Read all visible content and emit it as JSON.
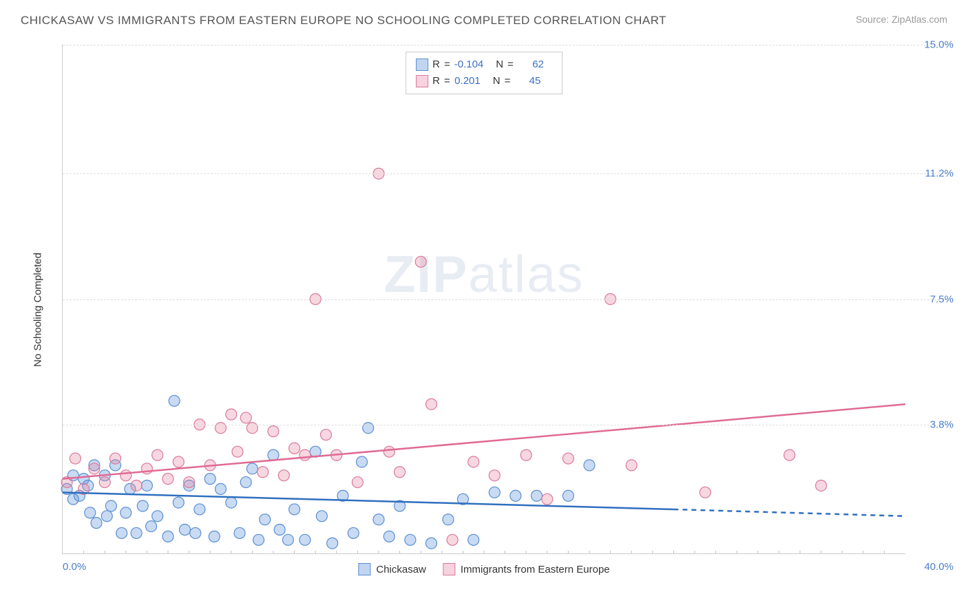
{
  "title": "CHICKASAW VS IMMIGRANTS FROM EASTERN EUROPE NO SCHOOLING COMPLETED CORRELATION CHART",
  "source": "Source: ZipAtlas.com",
  "ylabel": "No Schooling Completed",
  "watermark_a": "ZIP",
  "watermark_b": "atlas",
  "chart": {
    "type": "scatter",
    "xlim": [
      0,
      40
    ],
    "ylim": [
      0,
      15
    ],
    "xtick_min_label": "0.0%",
    "xtick_max_label": "40.0%",
    "yticks": [
      {
        "v": 3.8,
        "label": "3.8%"
      },
      {
        "v": 7.5,
        "label": "7.5%"
      },
      {
        "v": 11.2,
        "label": "11.2%"
      },
      {
        "v": 15.0,
        "label": "15.0%"
      }
    ],
    "grid_color": "#dddddd",
    "axis_color": "#cccccc",
    "tick_label_color": "#4a7fc9",
    "background_color": "#ffffff",
    "series": [
      {
        "name": "Chickasaw",
        "color_fill": "rgba(100,150,220,0.35)",
        "color_stroke": "#5a8fd0",
        "trend_color": "#2f6fc0",
        "R": "-0.104",
        "N": "62",
        "trend": {
          "x1": 0,
          "y1": 1.8,
          "x2": 29,
          "y2": 1.3,
          "dash_x1": 29,
          "dash_y1": 1.3,
          "dash_x2": 40,
          "dash_y2": 1.1
        },
        "points": [
          [
            0.2,
            1.9
          ],
          [
            0.5,
            1.6
          ],
          [
            0.5,
            2.3
          ],
          [
            0.8,
            1.7
          ],
          [
            1.0,
            2.2
          ],
          [
            1.2,
            2.0
          ],
          [
            1.3,
            1.2
          ],
          [
            1.5,
            2.6
          ],
          [
            1.6,
            0.9
          ],
          [
            2.0,
            2.3
          ],
          [
            2.1,
            1.1
          ],
          [
            2.3,
            1.4
          ],
          [
            2.5,
            2.6
          ],
          [
            2.8,
            0.6
          ],
          [
            3.0,
            1.2
          ],
          [
            3.2,
            1.9
          ],
          [
            3.5,
            0.6
          ],
          [
            3.8,
            1.4
          ],
          [
            4.0,
            2.0
          ],
          [
            4.2,
            0.8
          ],
          [
            4.5,
            1.1
          ],
          [
            5.0,
            0.5
          ],
          [
            5.3,
            4.5
          ],
          [
            5.5,
            1.5
          ],
          [
            5.8,
            0.7
          ],
          [
            6.0,
            2.0
          ],
          [
            6.3,
            0.6
          ],
          [
            6.5,
            1.3
          ],
          [
            7.0,
            2.2
          ],
          [
            7.2,
            0.5
          ],
          [
            7.5,
            1.9
          ],
          [
            8.0,
            1.5
          ],
          [
            8.4,
            0.6
          ],
          [
            8.7,
            2.1
          ],
          [
            9.0,
            2.5
          ],
          [
            9.3,
            0.4
          ],
          [
            9.6,
            1.0
          ],
          [
            10.0,
            2.9
          ],
          [
            10.3,
            0.7
          ],
          [
            10.7,
            0.4
          ],
          [
            11.0,
            1.3
          ],
          [
            11.5,
            0.4
          ],
          [
            12.0,
            3.0
          ],
          [
            12.3,
            1.1
          ],
          [
            12.8,
            0.3
          ],
          [
            13.3,
            1.7
          ],
          [
            13.8,
            0.6
          ],
          [
            14.2,
            2.7
          ],
          [
            14.5,
            3.7
          ],
          [
            15.0,
            1.0
          ],
          [
            15.5,
            0.5
          ],
          [
            16.0,
            1.4
          ],
          [
            16.5,
            0.4
          ],
          [
            17.5,
            0.3
          ],
          [
            18.3,
            1.0
          ],
          [
            19.0,
            1.6
          ],
          [
            19.5,
            0.4
          ],
          [
            20.5,
            1.8
          ],
          [
            21.5,
            1.7
          ],
          [
            22.5,
            1.7
          ],
          [
            24.0,
            1.7
          ],
          [
            25.0,
            2.6
          ]
        ]
      },
      {
        "name": "Immigrants from Eastern Europe",
        "color_fill": "rgba(230,130,160,0.32)",
        "color_stroke": "#d97a9c",
        "trend_color": "#e06a94",
        "R": "0.201",
        "N": "45",
        "trend": {
          "x1": 0,
          "y1": 2.2,
          "x2": 40,
          "y2": 4.4,
          "dash_x1": null
        },
        "points": [
          [
            0.2,
            2.1
          ],
          [
            0.6,
            2.8
          ],
          [
            1.0,
            1.9
          ],
          [
            1.5,
            2.5
          ],
          [
            2.0,
            2.1
          ],
          [
            2.5,
            2.8
          ],
          [
            3.0,
            2.3
          ],
          [
            3.5,
            2.0
          ],
          [
            4.0,
            2.5
          ],
          [
            4.5,
            2.9
          ],
          [
            5.0,
            2.2
          ],
          [
            5.5,
            2.7
          ],
          [
            6.0,
            2.1
          ],
          [
            6.5,
            3.8
          ],
          [
            7.0,
            2.6
          ],
          [
            7.5,
            3.7
          ],
          [
            8.0,
            4.1
          ],
          [
            8.3,
            3.0
          ],
          [
            8.7,
            4.0
          ],
          [
            9.0,
            3.7
          ],
          [
            9.5,
            2.4
          ],
          [
            10.0,
            3.6
          ],
          [
            10.5,
            2.3
          ],
          [
            11.0,
            3.1
          ],
          [
            11.5,
            2.9
          ],
          [
            12.0,
            7.5
          ],
          [
            12.5,
            3.5
          ],
          [
            13.0,
            2.9
          ],
          [
            14.0,
            2.1
          ],
          [
            15.0,
            11.2
          ],
          [
            15.5,
            3.0
          ],
          [
            16.0,
            2.4
          ],
          [
            17.0,
            8.6
          ],
          [
            17.5,
            4.4
          ],
          [
            18.5,
            0.4
          ],
          [
            19.5,
            2.7
          ],
          [
            20.5,
            2.3
          ],
          [
            22.0,
            2.9
          ],
          [
            23.0,
            1.6
          ],
          [
            24.0,
            2.8
          ],
          [
            26.0,
            7.5
          ],
          [
            27.0,
            2.6
          ],
          [
            30.5,
            1.8
          ],
          [
            34.5,
            2.9
          ],
          [
            36.0,
            2.0
          ]
        ]
      }
    ]
  },
  "legend": {
    "series1": "Chickasaw",
    "series2": "Immigrants from Eastern Europe"
  }
}
